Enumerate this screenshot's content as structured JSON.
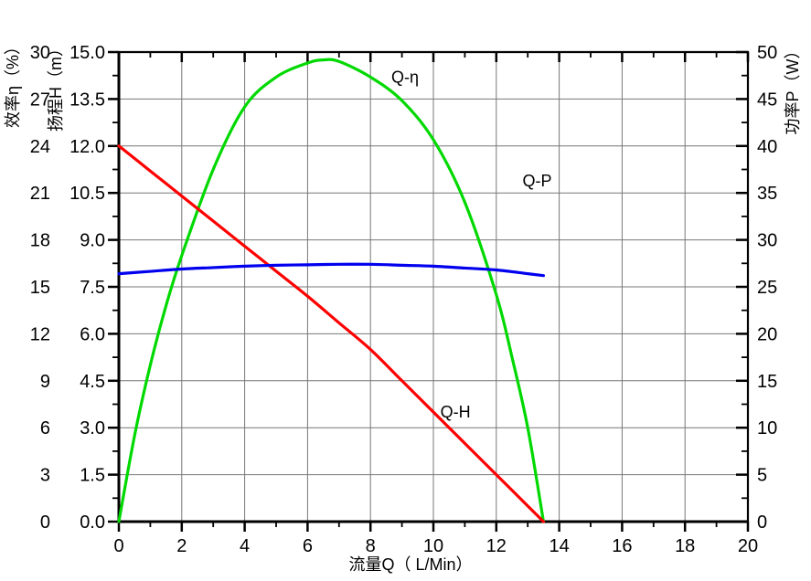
{
  "chart_data": {
    "type": "line",
    "title": "",
    "background": "#ffffff",
    "grid": true,
    "grid_color": "#777777",
    "axis_color": "#000000",
    "legend_position": "none",
    "x_axis": {
      "label": "流量Q（ L/Min）",
      "min": 0,
      "max": 20,
      "major_ticks": [
        0,
        2,
        4,
        6,
        8,
        10,
        12,
        14,
        16,
        18,
        20
      ],
      "tick_labels": [
        "0",
        "2",
        "4",
        "6",
        "8",
        "10",
        "12",
        "14",
        "16",
        "18",
        "20"
      ],
      "minor_ticks": [
        1,
        3,
        5,
        7,
        9,
        11,
        13,
        15,
        17,
        19
      ]
    },
    "y_axes": {
      "eta": {
        "label": "效率η（%）",
        "side": "left-outer",
        "min": 0,
        "max": 30,
        "major_ticks": [
          0,
          3,
          6,
          9,
          12,
          15,
          18,
          21,
          24,
          27,
          30
        ],
        "tick_labels": [
          "0",
          "3",
          "6",
          "9",
          "12",
          "15",
          "18",
          "21",
          "24",
          "27",
          "30"
        ]
      },
      "h": {
        "label": "扬程H（m）",
        "side": "left-inner",
        "min": 0,
        "max": 15,
        "major_ticks": [
          0,
          1.5,
          3,
          4.5,
          6,
          7.5,
          9,
          10.5,
          12,
          13.5,
          15
        ],
        "tick_labels": [
          "0.0",
          "1.5",
          "3.0",
          "4.5",
          "6.0",
          "7.5",
          "9.0",
          "10.5",
          "12.0",
          "13.5",
          "15.0"
        ],
        "minor_ticks": [
          0.75,
          2.25,
          3.75,
          5.25,
          6.75,
          8.25,
          9.75,
          11.25,
          12.75,
          14.25
        ]
      },
      "p": {
        "label": "功率P（W）",
        "side": "right",
        "min": 0,
        "max": 50,
        "major_ticks": [
          0,
          5,
          10,
          15,
          20,
          25,
          30,
          35,
          40,
          45,
          50
        ],
        "tick_labels": [
          "0",
          "5",
          "10",
          "15",
          "20",
          "25",
          "30",
          "35",
          "40",
          "45",
          "50"
        ],
        "minor_ticks": [
          2.5,
          7.5,
          12.5,
          17.5,
          22.5,
          27.5,
          32.5,
          37.5,
          42.5,
          47.5
        ]
      }
    },
    "series": [
      {
        "name": "Q-η",
        "axis": "eta",
        "color": "#00d900",
        "x": [
          0,
          0.5,
          1,
          1.5,
          2,
          3,
          4,
          5,
          6,
          6.5,
          7,
          8,
          9,
          10,
          11,
          12,
          12.5,
          13,
          13.5
        ],
        "y": [
          0,
          5.5,
          10,
          13.8,
          17,
          22.5,
          26.5,
          28.4,
          29.3,
          29.5,
          29.4,
          28.4,
          26.9,
          24.4,
          20.4,
          14.5,
          10.5,
          6,
          0
        ],
        "label": {
          "text": "Q-η",
          "x": 9.1,
          "y": 28.4
        }
      },
      {
        "name": "Q-H",
        "axis": "h",
        "color": "#ff0000",
        "x": [
          0,
          1,
          2,
          3,
          4,
          5,
          6,
          7,
          8,
          9,
          10,
          11,
          12,
          13,
          13.5
        ],
        "y": [
          12.0,
          11.2,
          10.4,
          9.6,
          8.8,
          8.0,
          7.2,
          6.35,
          5.5,
          4.5,
          3.5,
          2.5,
          1.5,
          0.5,
          0.0
        ],
        "label": {
          "text": "Q-H",
          "x": 10.7,
          "y": 3.5
        }
      },
      {
        "name": "Q-P",
        "axis": "p",
        "color": "#0000ee",
        "x": [
          0,
          1,
          2,
          3,
          4,
          5,
          6,
          7,
          8,
          9,
          10,
          11,
          12,
          13,
          13.5
        ],
        "y": [
          26.4,
          26.65,
          26.9,
          27.05,
          27.2,
          27.3,
          27.35,
          27.4,
          27.4,
          27.3,
          27.2,
          27.0,
          26.8,
          26.4,
          26.2
        ],
        "label": {
          "text": "Q-P",
          "x": 13.3,
          "y": 36.3
        }
      }
    ]
  }
}
